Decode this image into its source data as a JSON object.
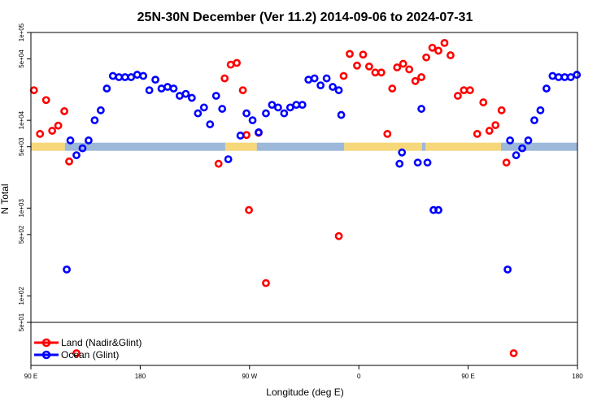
{
  "chart_data": {
    "type": "scatter",
    "title": "25N-30N December (Ver 11.2)   2014-09-06 to 2024-07-31",
    "xlabel": "Longitude (deg E)",
    "ylabel": "N Total",
    "scale_y": "log",
    "ylim": [
      50,
      100000
    ],
    "x_ticks": [
      {
        "pos": 0,
        "label": "90 E"
      },
      {
        "pos": 90,
        "label": "180"
      },
      {
        "pos": 180,
        "label": "90 W"
      },
      {
        "pos": 270,
        "label": "0"
      },
      {
        "pos": 360,
        "label": "90 E"
      },
      {
        "pos": 450,
        "label": "180"
      }
    ],
    "y_ticks": [
      {
        "value": 50,
        "label": "5e+01"
      },
      {
        "value": 100,
        "label": "1e+02"
      },
      {
        "value": 500,
        "label": "5e+02"
      },
      {
        "value": 1000,
        "label": "1e+03"
      },
      {
        "value": 5000,
        "label": "5e+03"
      },
      {
        "value": 10000,
        "label": "1e+04"
      },
      {
        "value": 50000,
        "label": "5e+04"
      },
      {
        "value": 100000,
        "label": "1e+05"
      }
    ],
    "legend": {
      "position": "bottom-left"
    },
    "land_mask_colors": {
      "land": "#f6d77a",
      "ocean": "#9db8d9"
    },
    "land_mask_segments": [
      [
        0,
        28,
        "land"
      ],
      [
        28,
        160,
        "ocean"
      ],
      [
        160,
        186,
        "land"
      ],
      [
        186,
        258,
        "ocean"
      ],
      [
        258,
        322,
        "land"
      ],
      [
        322,
        325,
        "ocean"
      ],
      [
        325,
        387,
        "land"
      ],
      [
        387,
        450,
        "ocean"
      ]
    ],
    "series": [
      {
        "name": "Land (Nadir&Glint)",
        "color": "#ff0000",
        "points": [
          [
            2.5,
            22000
          ],
          [
            7.5,
            7000
          ],
          [
            12.5,
            17000
          ],
          [
            17.5,
            7600
          ],
          [
            22.5,
            8700
          ],
          [
            27.5,
            12700
          ],
          [
            31.5,
            3400
          ],
          [
            37.5,
            40
          ],
          [
            154.5,
            3200
          ],
          [
            159.5,
            30000
          ],
          [
            164.5,
            43000
          ],
          [
            169.5,
            45000
          ],
          [
            174.5,
            22000
          ],
          [
            177.5,
            6800
          ],
          [
            179.5,
            950
          ],
          [
            187.5,
            7200
          ],
          [
            193.5,
            140
          ],
          [
            253.5,
            480
          ],
          [
            257.5,
            32000
          ],
          [
            262.5,
            57000
          ],
          [
            268.5,
            42000
          ],
          [
            273.5,
            56000
          ],
          [
            278.5,
            41000
          ],
          [
            283.5,
            35000
          ],
          [
            288.5,
            35000
          ],
          [
            293.5,
            7000
          ],
          [
            297.5,
            23000
          ],
          [
            301.5,
            40000
          ],
          [
            306.5,
            44000
          ],
          [
            311.5,
            38000
          ],
          [
            316.5,
            28000
          ],
          [
            321.5,
            31000
          ],
          [
            325.5,
            52000
          ],
          [
            330.5,
            67000
          ],
          [
            335.5,
            62000
          ],
          [
            340.5,
            76000
          ],
          [
            345.5,
            55000
          ],
          [
            351.5,
            19000
          ],
          [
            356.5,
            22000
          ],
          [
            361.5,
            22000
          ],
          [
            367.5,
            7000
          ],
          [
            372.5,
            16000
          ],
          [
            377.5,
            7600
          ],
          [
            382.5,
            8800
          ],
          [
            387.5,
            13000
          ],
          [
            391.5,
            3300
          ],
          [
            397.5,
            40
          ]
        ]
      },
      {
        "name": "Ocean (Glint)",
        "color": "#0000ff",
        "points": [
          [
            29.5,
            200
          ],
          [
            32.5,
            5900
          ],
          [
            37.5,
            4000
          ],
          [
            42.5,
            4800
          ],
          [
            47.5,
            5900
          ],
          [
            52.5,
            10000
          ],
          [
            57.5,
            13000
          ],
          [
            62.5,
            23000
          ],
          [
            67.5,
            32000
          ],
          [
            72.5,
            31000
          ],
          [
            77.5,
            31000
          ],
          [
            82.5,
            31000
          ],
          [
            87.5,
            33000
          ],
          [
            92.5,
            32000
          ],
          [
            97.5,
            22000
          ],
          [
            102.5,
            29000
          ],
          [
            107.5,
            23000
          ],
          [
            112.5,
            24000
          ],
          [
            117.5,
            23000
          ],
          [
            122.5,
            19000
          ],
          [
            127.5,
            20000
          ],
          [
            132.5,
            18000
          ],
          [
            137.5,
            12000
          ],
          [
            142.5,
            14000
          ],
          [
            147.5,
            9000
          ],
          [
            152.5,
            19000
          ],
          [
            157.5,
            13500
          ],
          [
            162.5,
            3600
          ],
          [
            172.5,
            6700
          ],
          [
            177.5,
            12000
          ],
          [
            182.5,
            10000
          ],
          [
            187.5,
            7300
          ],
          [
            193.5,
            12000
          ],
          [
            198.5,
            15000
          ],
          [
            203.5,
            14000
          ],
          [
            208.5,
            12000
          ],
          [
            213.5,
            14000
          ],
          [
            218.5,
            15000
          ],
          [
            223.5,
            15000
          ],
          [
            228.5,
            29000
          ],
          [
            233.5,
            30000
          ],
          [
            238.5,
            25000
          ],
          [
            243.5,
            30000
          ],
          [
            248.5,
            24000
          ],
          [
            253.5,
            22000
          ],
          [
            255.5,
            11500
          ],
          [
            303.5,
            3200
          ],
          [
            305.5,
            4300
          ],
          [
            318.5,
            3300
          ],
          [
            321.5,
            13500
          ],
          [
            326.5,
            3300
          ],
          [
            331.5,
            950
          ],
          [
            335.5,
            950
          ],
          [
            392.5,
            200
          ],
          [
            394.5,
            5900
          ],
          [
            399.5,
            4000
          ],
          [
            404.5,
            4800
          ],
          [
            409.5,
            5900
          ],
          [
            414.5,
            10000
          ],
          [
            419.5,
            13000
          ],
          [
            424.5,
            23000
          ],
          [
            429.5,
            32000
          ],
          [
            434.5,
            31000
          ],
          [
            439.5,
            31000
          ],
          [
            444.5,
            31000
          ],
          [
            449.5,
            33000
          ]
        ]
      }
    ]
  }
}
